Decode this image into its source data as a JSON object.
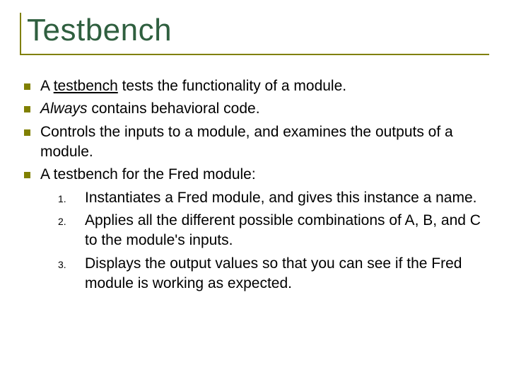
{
  "slide": {
    "title": "Testbench",
    "title_color": "#2f5f3f",
    "title_fontsize": 44,
    "border_color": "#808000",
    "bullet_color": "#808000",
    "body_fontsize": 21,
    "body_color": "#000000",
    "num_marker_fontsize": 14,
    "bullets": [
      {
        "pre": "A ",
        "underlined": "testbench",
        "post": " tests the functionality of a module."
      },
      {
        "italic": "Always",
        "post": " contains behavioral code."
      },
      {
        "text": "Controls the inputs to a module, and examines the outputs of a module."
      },
      {
        "text": "A testbench for the Fred module:"
      }
    ],
    "numbered": [
      {
        "n": "1.",
        "text": "Instantiates a Fred module, and gives this instance a name."
      },
      {
        "n": "2.",
        "text": "Applies all the different possible combinations of A, B, and C to the module's inputs."
      },
      {
        "n": "3.",
        "text": "Displays the output values so that you can see if the Fred module is working as expected."
      }
    ]
  }
}
